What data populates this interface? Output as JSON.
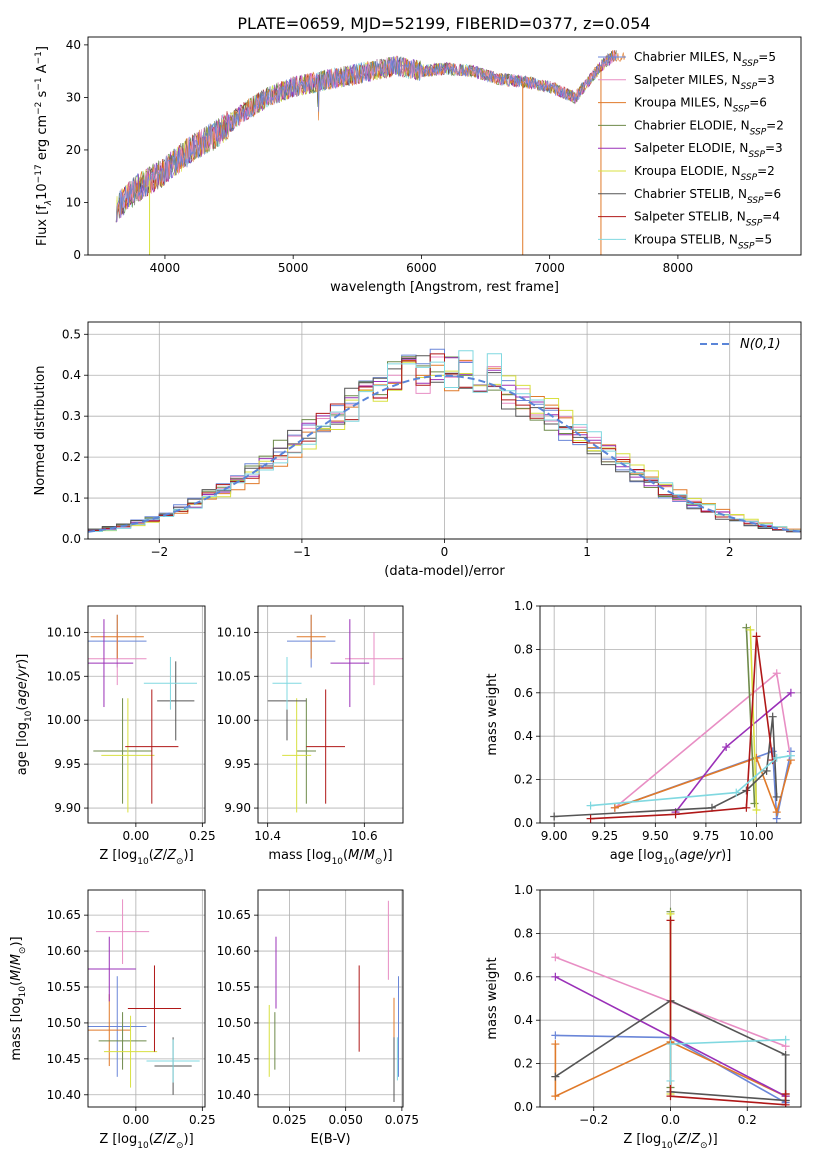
{
  "figure_title": "PLATE=0659, MJD=52199, FIBERID=0377, z=0.054",
  "model_colors": [
    "#6a86d8",
    "#e88ec4",
    "#e07a2a",
    "#6e8a4a",
    "#9a30b8",
    "#d8e040",
    "#555555",
    "#b01818",
    "#80d8e0"
  ],
  "chart_data": [
    {
      "id": "spectrum",
      "type": "line",
      "title": "PLATE=0659, MJD=52199, FIBERID=0377, z=0.054",
      "xlabel": "wavelength [Angstrom, rest frame]",
      "ylabel": "Flux [f_λ 10^-17 erg cm^-2 s^-1 A^-1]",
      "xlim": [
        3400,
        8960
      ],
      "ylim": [
        0,
        41.5
      ],
      "xticks": [
        4000,
        5000,
        6000,
        7000,
        8000
      ],
      "yticks": [
        0,
        10,
        20,
        30,
        40
      ],
      "grid": false,
      "legend_position": "right",
      "continuum_x": [
        3620,
        3800,
        4000,
        4200,
        4400,
        4600,
        4800,
        5000,
        5200,
        5400,
        5600,
        5800,
        6000,
        6200,
        6400,
        6600,
        6800,
        7000,
        7200,
        7400,
        7500
      ],
      "continuum_y": [
        9,
        13,
        16,
        20,
        23,
        27,
        30,
        32,
        33,
        34,
        35,
        36,
        35,
        35.5,
        35,
        33.5,
        33,
        32,
        30,
        36,
        38
      ],
      "dropout_x": [
        3880,
        6790,
        7400
      ],
      "series": [
        {
          "name": "Chabrier MILES",
          "nssp": "5"
        },
        {
          "name": "Salpeter MILES",
          "nssp": "3"
        },
        {
          "name": "Kroupa MILES",
          "nssp": "6"
        },
        {
          "name": "Chabrier ELODIE",
          "nssp": "2"
        },
        {
          "name": "Salpeter ELODIE",
          "nssp": "3"
        },
        {
          "name": "Kroupa ELODIE",
          "nssp": "2"
        },
        {
          "name": "Chabrier STELIB",
          "nssp": "6"
        },
        {
          "name": "Salpeter STELIB",
          "nssp": "4"
        },
        {
          "name": "Kroupa STELIB",
          "nssp": "5"
        }
      ]
    },
    {
      "id": "residuals",
      "type": "histogram",
      "xlabel": "(data-model)/error",
      "ylabel": "Normed distribution",
      "xlim": [
        -2.5,
        2.5
      ],
      "ylim": [
        0,
        0.53
      ],
      "xticks": [
        -2,
        -1,
        0,
        1,
        2
      ],
      "yticks": [
        0.0,
        0.1,
        0.2,
        0.3,
        0.4,
        0.5
      ],
      "grid": true,
      "legend": "N(0,1)",
      "legend_position": "top-right",
      "bin_width": 0.1
    },
    {
      "id": "age_vs_Z",
      "type": "errorbar",
      "xlabel": "Z [log10(Z/Z⊙)]",
      "ylabel": "age [log10(age/yr)]",
      "xlim": [
        -0.18,
        0.26
      ],
      "ylim": [
        9.883,
        10.13
      ],
      "xticks": [
        0.0,
        0.25
      ],
      "yticks": [
        9.9,
        9.95,
        10.0,
        10.05,
        10.1
      ],
      "grid": true,
      "points": [
        {
          "x": -0.07,
          "xerr": 0.11,
          "y": 10.09,
          "yerr": 0.03
        },
        {
          "x": -0.07,
          "xerr": 0.11,
          "y": 10.07,
          "yerr": 0.03
        },
        {
          "x": -0.07,
          "xerr": 0.1,
          "y": 10.095,
          "yerr": 0.025
        },
        {
          "x": -0.05,
          "xerr": 0.11,
          "y": 9.965,
          "yerr": 0.06
        },
        {
          "x": -0.12,
          "xerr": 0.11,
          "y": 10.065,
          "yerr": 0.05
        },
        {
          "x": -0.03,
          "xerr": 0.1,
          "y": 9.96,
          "yerr": 0.065
        },
        {
          "x": 0.15,
          "xerr": 0.07,
          "y": 10.022,
          "yerr": 0.045
        },
        {
          "x": 0.06,
          "xerr": 0.1,
          "y": 9.97,
          "yerr": 0.065
        },
        {
          "x": 0.13,
          "xerr": 0.1,
          "y": 10.042,
          "yerr": 0.03
        }
      ]
    },
    {
      "id": "age_vs_mass",
      "type": "errorbar",
      "xlabel": "mass [log10(M/M⊙)]",
      "xlim": [
        10.38,
        10.68
      ],
      "ylim": [
        9.883,
        10.13
      ],
      "xticks": [
        10.4,
        10.6
      ],
      "yticks": [
        9.9,
        9.95,
        10.0,
        10.05,
        10.1
      ],
      "grid": true,
      "points": [
        {
          "x": 10.49,
          "xerr": 0.05,
          "y": 10.09,
          "yerr": 0.03
        },
        {
          "x": 10.62,
          "xerr": 0.06,
          "y": 10.07,
          "yerr": 0.03
        },
        {
          "x": 10.49,
          "xerr": 0.03,
          "y": 10.095,
          "yerr": 0.025
        },
        {
          "x": 10.48,
          "xerr": 0.02,
          "y": 9.965,
          "yerr": 0.06
        },
        {
          "x": 10.57,
          "xerr": 0.04,
          "y": 10.065,
          "yerr": 0.05
        },
        {
          "x": 10.46,
          "xerr": 0.03,
          "y": 9.96,
          "yerr": 0.065
        },
        {
          "x": 10.44,
          "xerr": 0.04,
          "y": 10.022,
          "yerr": 0.045
        },
        {
          "x": 10.52,
          "xerr": 0.04,
          "y": 9.97,
          "yerr": 0.065
        },
        {
          "x": 10.44,
          "xerr": 0.03,
          "y": 10.042,
          "yerr": 0.03
        }
      ]
    },
    {
      "id": "mass_weight_vs_age",
      "type": "line",
      "xlabel": "age [log10(age/yr)]",
      "ylabel": "mass weight",
      "xlim": [
        8.93,
        10.22
      ],
      "ylim": [
        0,
        1.0
      ],
      "xticks": [
        "9.00",
        "9.25",
        "9.50",
        "9.75",
        "10.00"
      ],
      "xtick_values": [
        9.0,
        9.25,
        9.5,
        9.75,
        10.0
      ],
      "yticks": [
        "0.0",
        "0.2",
        "0.4",
        "0.6",
        "0.8",
        "1.0"
      ],
      "ytick_values": [
        0,
        0.2,
        0.4,
        0.6,
        0.8,
        1.0
      ],
      "grid": true,
      "series": [
        {
          "x": [
            9.3,
            10.08,
            10.1,
            10.17
          ],
          "y": [
            0.07,
            0.33,
            0.02,
            0.33
          ]
        },
        {
          "x": [
            9.3,
            10.1,
            10.17
          ],
          "y": [
            0.07,
            0.69,
            0.29
          ]
        },
        {
          "x": [
            9.3,
            10.0,
            10.1,
            10.17
          ],
          "y": [
            0.07,
            0.3,
            0.05,
            0.29
          ]
        },
        {
          "x": [
            9.95,
            9.99
          ],
          "y": [
            0.9,
            0.09
          ]
        },
        {
          "x": [
            9.6,
            9.85,
            10.17
          ],
          "y": [
            0.05,
            0.35,
            0.6
          ]
        },
        {
          "x": [
            9.97,
            10.0
          ],
          "y": [
            0.89,
            0.06
          ]
        },
        {
          "x": [
            9.0,
            9.78,
            9.95,
            10.05,
            10.08,
            10.1
          ],
          "y": [
            0.03,
            0.07,
            0.15,
            0.24,
            0.49,
            0.12
          ]
        },
        {
          "x": [
            9.18,
            9.6,
            9.95,
            10.0,
            10.08
          ],
          "y": [
            0.02,
            0.04,
            0.07,
            0.86,
            0.29
          ]
        },
        {
          "x": [
            9.18,
            9.9,
            10.1,
            10.17
          ],
          "y": [
            0.08,
            0.14,
            0.3,
            0.31
          ]
        }
      ]
    },
    {
      "id": "mass_vs_Z",
      "type": "errorbar",
      "xlabel": "Z [log10(Z/Z⊙)]",
      "ylabel": "mass [log10(M/M⊙)]",
      "xlim": [
        -0.18,
        0.26
      ],
      "ylim": [
        10.383,
        10.685
      ],
      "xticks": [
        0.0,
        0.25
      ],
      "yticks": [
        10.4,
        10.45,
        10.5,
        10.55,
        10.6,
        10.65
      ],
      "grid": true,
      "points": [
        {
          "x": -0.07,
          "xerr": 0.11,
          "y": 10.495,
          "yerr": 0.07
        },
        {
          "x": -0.05,
          "xerr": 0.1,
          "y": 10.627,
          "yerr": 0.045
        },
        {
          "x": -0.1,
          "xerr": 0.08,
          "y": 10.49,
          "yerr": 0.05
        },
        {
          "x": -0.05,
          "xerr": 0.09,
          "y": 10.475,
          "yerr": 0.04
        },
        {
          "x": -0.1,
          "xerr": 0.1,
          "y": 10.575,
          "yerr": 0.045
        },
        {
          "x": -0.02,
          "xerr": 0.1,
          "y": 10.46,
          "yerr": 0.05
        },
        {
          "x": 0.14,
          "xerr": 0.07,
          "y": 10.44,
          "yerr": 0.04
        },
        {
          "x": 0.07,
          "xerr": 0.1,
          "y": 10.52,
          "yerr": 0.06
        },
        {
          "x": 0.14,
          "xerr": 0.1,
          "y": 10.447,
          "yerr": 0.03
        }
      ]
    },
    {
      "id": "mass_vs_ebv",
      "type": "errorbar",
      "xlabel": "E(B-V)",
      "xlim": [
        0.011,
        0.0755
      ],
      "ylim": [
        10.383,
        10.685
      ],
      "xticks": [
        "0.025",
        "0.050",
        "0.075"
      ],
      "xtick_values": [
        0.025,
        0.05,
        0.075
      ],
      "yticks": [
        10.4,
        10.45,
        10.5,
        10.55,
        10.6,
        10.65
      ],
      "grid": true,
      "points": [
        {
          "x": 0.0735,
          "y": 10.495,
          "yerr": 0.07
        },
        {
          "x": 0.069,
          "y": 10.615,
          "yerr": 0.055
        },
        {
          "x": 0.0715,
          "y": 10.49,
          "yerr": 0.045
        },
        {
          "x": 0.0185,
          "y": 10.475,
          "yerr": 0.04
        },
        {
          "x": 0.019,
          "y": 10.57,
          "yerr": 0.05
        },
        {
          "x": 0.016,
          "y": 10.475,
          "yerr": 0.05
        },
        {
          "x": 0.0715,
          "y": 10.435,
          "yerr": 0.045
        },
        {
          "x": 0.056,
          "y": 10.52,
          "yerr": 0.06
        },
        {
          "x": 0.073,
          "y": 10.45,
          "yerr": 0.03
        }
      ]
    },
    {
      "id": "mass_weight_vs_Z",
      "type": "line",
      "xlabel": "Z [log10(Z/Z⊙)]",
      "ylabel": "mass weight",
      "xlim": [
        -0.34,
        0.34
      ],
      "ylim": [
        0,
        1.0
      ],
      "xticks": [
        "−0.2",
        "0.0",
        "0.2"
      ],
      "xtick_values": [
        -0.2,
        0.0,
        0.2
      ],
      "yticks": [
        "0.0",
        "0.2",
        "0.4",
        "0.6",
        "0.8",
        "1.0"
      ],
      "ytick_values": [
        0,
        0.2,
        0.4,
        0.6,
        0.8,
        1.0
      ],
      "grid": true,
      "series": [
        {
          "x": [
            -0.3,
            0.0,
            0.3
          ],
          "y": [
            0.33,
            0.32,
            0.02
          ]
        },
        {
          "x": [
            -0.3,
            0.3
          ],
          "y": [
            0.69,
            0.28
          ]
        },
        {
          "x": [
            -0.3,
            -0.3,
            0.0,
            0.3,
            0.3
          ],
          "y": [
            0.29,
            0.05,
            0.3,
            0.05,
            0.06
          ]
        },
        {
          "x": [
            0.0,
            0.0
          ],
          "y": [
            0.9,
            0.09
          ]
        },
        {
          "x": [
            -0.3,
            0.3
          ],
          "y": [
            0.6,
            0.05
          ]
        },
        {
          "x": [
            0.0,
            0.0
          ],
          "y": [
            0.89,
            0.06
          ]
        },
        {
          "x": [
            -0.3,
            0.0,
            0.3,
            0.3,
            0.0,
            0.3
          ],
          "y": [
            0.14,
            0.49,
            0.24,
            0.03,
            0.07,
            0.03
          ]
        },
        {
          "x": [
            0.0,
            0.0,
            0.3,
            0.3
          ],
          "y": [
            0.86,
            0.05,
            0.01,
            0.06
          ]
        },
        {
          "x": [
            0.0,
            0.0,
            0.3
          ],
          "y": [
            0.12,
            0.29,
            0.31
          ]
        }
      ]
    }
  ]
}
